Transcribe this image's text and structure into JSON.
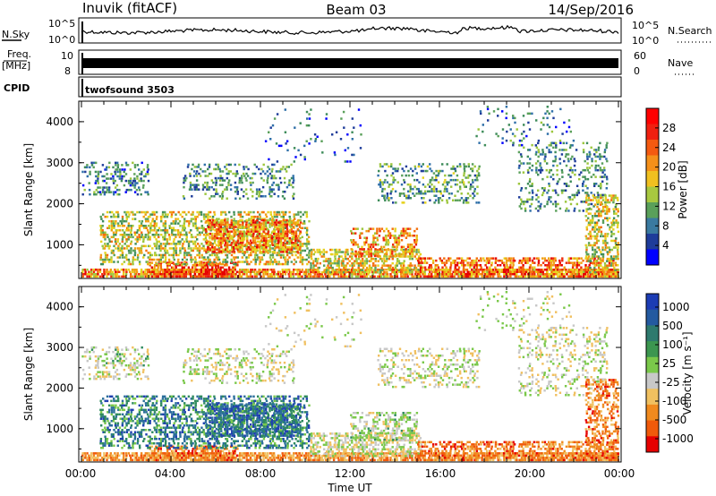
{
  "header": {
    "station": "Inuvik (fitACF)",
    "beam": "Beam 03",
    "date": "14/Sep/2016"
  },
  "strip_panels": {
    "nsky": {
      "left_label": "N.Sky",
      "left_ticks": [
        "10^5",
        "10^0"
      ],
      "right_ticks": [
        "10^5",
        "10^0"
      ],
      "right_label": "N.Search"
    },
    "freq": {
      "left_label_top": "Freq.",
      "left_label_bottom": "[MHz]",
      "left_ticks": [
        "10",
        "8"
      ],
      "right_ticks": [
        "60",
        "0"
      ],
      "right_label": "Nave"
    },
    "cpid": {
      "label": "CPID",
      "value": "twofsound 3503"
    }
  },
  "chart_data": [
    {
      "type": "heatmap",
      "title": "",
      "quantity": "Power",
      "ylabel": "Slant Range [km]",
      "xlabel": "Time UT",
      "x_ticks": [
        "00:00",
        "04:00",
        "08:00",
        "12:00",
        "16:00",
        "20:00",
        "00:00"
      ],
      "y_ticks": [
        "1000",
        "2000",
        "3000",
        "4000"
      ],
      "ylim": [
        180,
        4500
      ],
      "xlim_hours": [
        0,
        24
      ],
      "colorbar_label": "Power [dB]",
      "colorbar_ticks": [
        "4",
        "8",
        "12",
        "16",
        "20",
        "24",
        "28"
      ],
      "colorbar_range": [
        0,
        32
      ],
      "colors": [
        "#0000ff",
        "#1e3c9a",
        "#2e6fa8",
        "#3e8c5a",
        "#5aa05a",
        "#9cc63c",
        "#e6d21e",
        "#f0a012",
        "#f46e0a",
        "#ee2a0a",
        "#e60000"
      ]
    },
    {
      "type": "heatmap",
      "title": "",
      "quantity": "Velocity",
      "ylabel": "Slant Range [km]",
      "xlabel": "Time UT",
      "x_ticks": [
        "00:00",
        "04:00",
        "08:00",
        "12:00",
        "16:00",
        "20:00",
        "00:00"
      ],
      "y_ticks": [
        "1000",
        "2000",
        "3000",
        "4000"
      ],
      "ylim": [
        180,
        4500
      ],
      "xlim_hours": [
        0,
        24
      ],
      "colorbar_label": "Velocity [m s⁻¹]",
      "colorbar_ticks": [
        "1000",
        "500",
        "100",
        "25",
        "-25",
        "-100",
        "-500",
        "-1000"
      ],
      "colors": [
        "#2040b0",
        "#2a6e9a",
        "#2e8a5e",
        "#7ac84a",
        "#c8c8c8",
        "#f0c060",
        "#f08a1e",
        "#f05a0a",
        "#e60000"
      ]
    }
  ]
}
